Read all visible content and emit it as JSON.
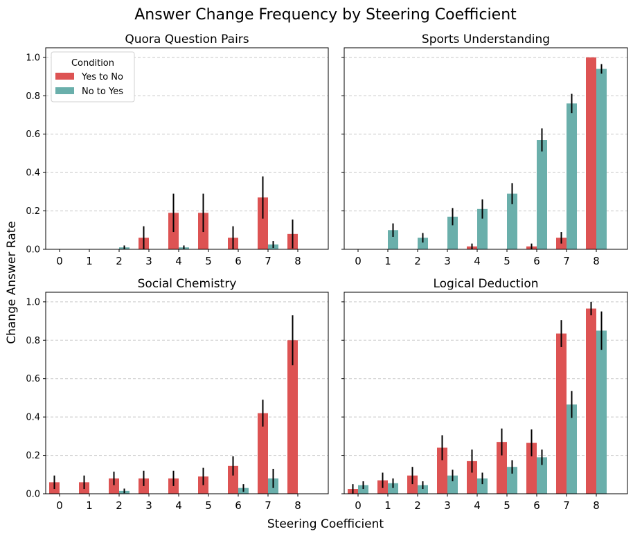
{
  "chart_data": {
    "type": "bar",
    "title": "Answer Change Frequency by Steering Coefficient",
    "xlabel": "Steering Coefficient",
    "ylabel": "Change Answer Rate",
    "ylim": [
      0,
      1.05
    ],
    "yticks": [
      "0.0",
      "0.2",
      "0.4",
      "0.6",
      "0.8",
      "1.0"
    ],
    "ytick_values": [
      0,
      0.2,
      0.4,
      0.6,
      0.8,
      1.0
    ],
    "categories": [
      "0",
      "1",
      "2",
      "3",
      "4",
      "5",
      "6",
      "7",
      "8"
    ],
    "grid": "horizontal dashed",
    "legend": {
      "title": "Condition",
      "placement": "top-left",
      "entries": [
        "Yes to No",
        "No to Yes"
      ]
    },
    "colors": {
      "Yes to No": "#dd5353",
      "No to Yes": "#6aafab"
    },
    "panels": [
      {
        "title": "Quora Question Pairs",
        "series": [
          {
            "name": "Yes to No",
            "values": [
              0,
              0,
              0,
              0.06,
              0.19,
              0.19,
              0.06,
              0.27,
              0.08
            ],
            "errors": [
              0,
              0,
              0,
              0.06,
              0.1,
              0.1,
              0.06,
              0.11,
              0.075
            ]
          },
          {
            "name": "No to Yes",
            "values": [
              0,
              0,
              0.01,
              0,
              0.01,
              0,
              0,
              0.025,
              0
            ],
            "errors": [
              0,
              0,
              0.01,
              0,
              0.01,
              0,
              0,
              0.018,
              0
            ]
          }
        ]
      },
      {
        "title": "Sports Understanding",
        "series": [
          {
            "name": "Yes to No",
            "values": [
              0,
              0,
              0,
              0,
              0.015,
              0,
              0.015,
              0.06,
              1.0
            ],
            "errors": [
              0,
              0,
              0,
              0,
              0.015,
              0,
              0.015,
              0.03,
              0
            ]
          },
          {
            "name": "No to Yes",
            "values": [
              0,
              0.1,
              0.06,
              0.17,
              0.21,
              0.29,
              0.57,
              0.76,
              0.94
            ],
            "errors": [
              0,
              0.035,
              0.025,
              0.045,
              0.05,
              0.055,
              0.06,
              0.05,
              0.025
            ]
          }
        ]
      },
      {
        "title": "Social Chemistry",
        "series": [
          {
            "name": "Yes to No",
            "values": [
              0.06,
              0.06,
              0.08,
              0.08,
              0.08,
              0.09,
              0.145,
              0.42,
              0.8
            ],
            "errors": [
              0.035,
              0.035,
              0.035,
              0.04,
              0.04,
              0.045,
              0.05,
              0.07,
              0.13
            ]
          },
          {
            "name": "No to Yes",
            "values": [
              0,
              0,
              0.015,
              0,
              0,
              0,
              0.03,
              0.08,
              0
            ],
            "errors": [
              0,
              0,
              0.012,
              0,
              0,
              0,
              0.02,
              0.05,
              0
            ]
          }
        ]
      },
      {
        "title": "Logical Deduction",
        "series": [
          {
            "name": "Yes to No",
            "values": [
              0.025,
              0.07,
              0.095,
              0.24,
              0.17,
              0.27,
              0.265,
              0.835,
              0.965
            ],
            "errors": [
              0.025,
              0.04,
              0.045,
              0.065,
              0.06,
              0.07,
              0.07,
              0.07,
              0.035
            ]
          },
          {
            "name": "No to Yes",
            "values": [
              0.045,
              0.055,
              0.045,
              0.095,
              0.08,
              0.14,
              0.19,
              0.465,
              0.85
            ],
            "errors": [
              0.02,
              0.025,
              0.02,
              0.03,
              0.03,
              0.035,
              0.04,
              0.07,
              0.1
            ]
          }
        ]
      }
    ]
  }
}
